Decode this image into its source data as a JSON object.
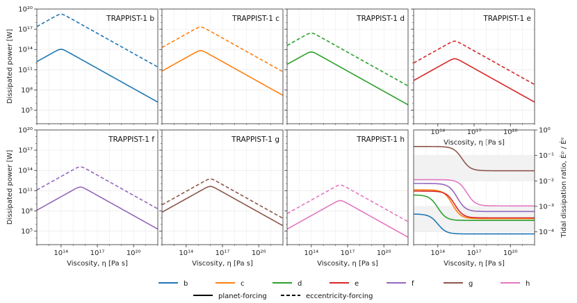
{
  "chart_data": {
    "type": "line",
    "xlabel": "Viscosity, η [Pa s]",
    "ylabel": "Dissipated power [W]",
    "ylabel_ratio": "Tidal dissipation ratio, Ėᵖ / Ėᵉ",
    "xlim_log10": [
      12,
      22
    ],
    "ylim_log10": [
      3,
      20
    ],
    "ratio_ylim_log10": [
      -4.5,
      0
    ],
    "x_ticks": [
      "10¹⁴",
      "10¹⁷",
      "10²⁰"
    ],
    "y_ticks": [
      "10⁵",
      "10⁸",
      "10¹¹",
      "10¹⁴",
      "10¹⁷",
      "10²⁰"
    ],
    "ratio_y_ticks": [
      "10⁻⁴",
      "10⁻³",
      "10⁻²",
      "10⁻¹",
      "10⁰"
    ],
    "colors": {
      "b": "#1f77b4",
      "c": "#ff7f0e",
      "d": "#2ca02c",
      "e": "#d62728",
      "f": "#9467bd",
      "g": "#8c564b",
      "h": "#e377c2"
    },
    "panels": [
      {
        "key": "b",
        "title": "TRAPPIST-1 b",
        "eta_peak_log10": 14.0,
        "planet_peak_log10": 14.2,
        "ecc_peak_log10": 19.4
      },
      {
        "key": "c",
        "title": "TRAPPIST-1 c",
        "eta_peak_log10": 15.2,
        "planet_peak_log10": 14.0,
        "ecc_peak_log10": 17.5
      },
      {
        "key": "d",
        "title": "TRAPPIST-1 d",
        "eta_peak_log10": 14.0,
        "planet_peak_log10": 13.8,
        "ecc_peak_log10": 16.6
      },
      {
        "key": "e",
        "title": "TRAPPIST-1 e",
        "eta_peak_log10": 15.4,
        "planet_peak_log10": 12.8,
        "ecc_peak_log10": 15.4
      },
      {
        "key": "f",
        "title": "TRAPPIST-1 f",
        "eta_peak_log10": 15.6,
        "planet_peak_log10": 11.7,
        "ecc_peak_log10": 14.7
      },
      {
        "key": "g",
        "title": "TRAPPIST-1 g",
        "eta_peak_log10": 16.0,
        "planet_peak_log10": 11.8,
        "ecc_peak_log10": 12.9
      },
      {
        "key": "h",
        "title": "TRAPPIST-1 h",
        "eta_peak_log10": 16.4,
        "planet_peak_log10": 9.7,
        "ecc_peak_log10": 12.0
      }
    ],
    "ratio_series": [
      {
        "key": "b",
        "low_log10": -3.3,
        "high_log10": -4.08,
        "transition_log10": 14.0
      },
      {
        "key": "c",
        "low_log10": -2.35,
        "high_log10": -3.48,
        "transition_log10": 15.2
      },
      {
        "key": "d",
        "low_log10": -2.55,
        "high_log10": -3.55,
        "transition_log10": 14.0
      },
      {
        "key": "e",
        "low_log10": -2.4,
        "high_log10": -3.45,
        "transition_log10": 15.4
      },
      {
        "key": "f",
        "low_log10": -2.1,
        "high_log10": -3.2,
        "transition_log10": 15.6
      },
      {
        "key": "g",
        "low_log10": -0.65,
        "high_log10": -1.6,
        "transition_log10": 16.0
      },
      {
        "key": "h",
        "low_log10": -1.95,
        "high_log10": -2.98,
        "transition_log10": 16.4
      }
    ]
  },
  "legend": {
    "planets": [
      "b",
      "c",
      "d",
      "e",
      "f",
      "g",
      "h"
    ],
    "styles": [
      "planet-forcing",
      "eccentricity-forcing"
    ]
  }
}
